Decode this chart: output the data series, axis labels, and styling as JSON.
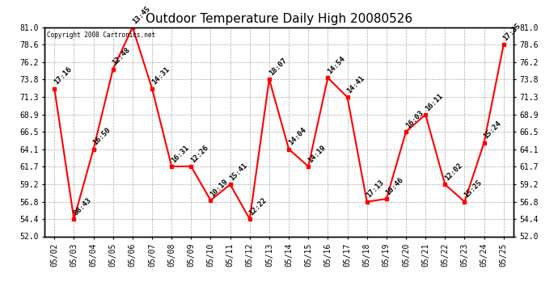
{
  "title": "Outdoor Temperature Daily High 20080526",
  "copyright": "Copyright 2008 Cartronics.net",
  "dates": [
    "05/02",
    "05/03",
    "05/04",
    "05/05",
    "05/06",
    "05/07",
    "05/08",
    "05/09",
    "05/10",
    "05/11",
    "05/12",
    "05/13",
    "05/14",
    "05/15",
    "05/16",
    "05/17",
    "05/18",
    "05/19",
    "05/20",
    "05/21",
    "05/22",
    "05/23",
    "05/24",
    "05/25"
  ],
  "values": [
    72.5,
    54.4,
    64.1,
    75.2,
    81.0,
    72.5,
    61.7,
    61.7,
    57.0,
    59.2,
    54.4,
    73.8,
    64.1,
    61.7,
    74.0,
    71.3,
    56.8,
    57.2,
    66.5,
    68.9,
    59.2,
    56.8,
    65.0,
    78.6
  ],
  "labels": [
    "17:16",
    "08:43",
    "16:50",
    "12:48",
    "13:45",
    "14:31",
    "16:31",
    "12:26",
    "10:19",
    "15:41",
    "12:22",
    "18:07",
    "14:04",
    "14:19",
    "14:54",
    "14:41",
    "17:13",
    "10:46",
    "16:03",
    "16:11",
    "12:02",
    "15:25",
    "15:24",
    "17:35"
  ],
  "ylim": [
    52.0,
    81.0
  ],
  "yticks": [
    52.0,
    54.4,
    56.8,
    59.2,
    61.7,
    64.1,
    66.5,
    68.9,
    71.3,
    73.8,
    76.2,
    78.6,
    81.0
  ],
  "line_color": "red",
  "marker_color": "red",
  "bg_color": "white",
  "grid_color": "#aaaaaa",
  "title_fontsize": 11,
  "label_fontsize": 6.5,
  "tick_fontsize": 7,
  "copyright_fontsize": 5.5
}
